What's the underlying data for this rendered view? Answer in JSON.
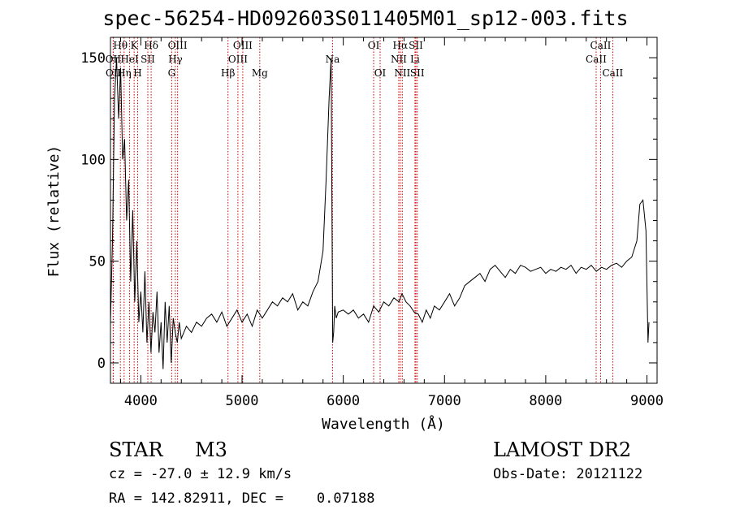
{
  "chart_data": {
    "type": "line",
    "title": "spec-56254-HD092603S011405M01_sp12-003.fits",
    "xlabel": "Wavelength (Å)",
    "ylabel": "Flux (relative)",
    "xlim": [
      3700,
      9100
    ],
    "ylim": [
      -10,
      160
    ],
    "x_ticks": [
      4000,
      5000,
      6000,
      7000,
      8000,
      9000
    ],
    "y_ticks": [
      0,
      50,
      100,
      150
    ],
    "grid": false,
    "series": [
      {
        "x": [
          3700,
          3720,
          3740,
          3760,
          3780,
          3800,
          3820,
          3840,
          3860,
          3880,
          3900,
          3920,
          3940,
          3960,
          3980,
          4000,
          4020,
          4040,
          4060,
          4080,
          4100,
          4120,
          4140,
          4160,
          4180,
          4200,
          4220,
          4240,
          4260,
          4280,
          4300,
          4320,
          4340,
          4360,
          4380,
          4400,
          4450,
          4500,
          4550,
          4600,
          4650,
          4700,
          4750,
          4800,
          4850,
          4900,
          4950,
          5000,
          5050,
          5100,
          5150,
          5200,
          5250,
          5300,
          5350,
          5400,
          5450,
          5500,
          5550,
          5600,
          5650,
          5700,
          5750,
          5800,
          5830,
          5860,
          5880,
          5895,
          5905,
          5915,
          5930,
          5950,
          6000,
          6050,
          6100,
          6150,
          6200,
          6250,
          6300,
          6350,
          6400,
          6450,
          6500,
          6550,
          6580,
          6620,
          6660,
          6700,
          6740,
          6780,
          6820,
          6860,
          6900,
          6950,
          7000,
          7050,
          7100,
          7150,
          7200,
          7250,
          7300,
          7350,
          7400,
          7450,
          7500,
          7550,
          7600,
          7650,
          7700,
          7750,
          7800,
          7850,
          7900,
          7950,
          8000,
          8050,
          8100,
          8150,
          8200,
          8250,
          8300,
          8350,
          8400,
          8450,
          8500,
          8550,
          8600,
          8650,
          8700,
          8750,
          8800,
          8850,
          8900,
          8930,
          8960,
          8990,
          9010,
          9020
        ],
        "y": [
          20,
          60,
          130,
          150,
          120,
          145,
          100,
          110,
          70,
          90,
          40,
          75,
          30,
          60,
          20,
          35,
          15,
          45,
          10,
          30,
          5,
          25,
          15,
          35,
          5,
          20,
          -3,
          30,
          10,
          28,
          0,
          22,
          15,
          10,
          20,
          12,
          18,
          15,
          20,
          18,
          22,
          24,
          20,
          25,
          18,
          22,
          26,
          20,
          24,
          18,
          26,
          22,
          26,
          30,
          28,
          32,
          30,
          34,
          26,
          30,
          28,
          35,
          40,
          55,
          90,
          130,
          150,
          10,
          15,
          28,
          22,
          25,
          26,
          24,
          26,
          22,
          24,
          20,
          28,
          25,
          30,
          28,
          32,
          30,
          34,
          30,
          28,
          25,
          24,
          20,
          26,
          22,
          28,
          26,
          30,
          34,
          28,
          32,
          38,
          40,
          42,
          44,
          40,
          46,
          48,
          45,
          42,
          46,
          44,
          48,
          47,
          45,
          46,
          47,
          44,
          46,
          45,
          47,
          46,
          48,
          44,
          47,
          46,
          48,
          45,
          47,
          46,
          48,
          49,
          47,
          50,
          52,
          60,
          78,
          80,
          65,
          10,
          20
        ]
      }
    ],
    "line_markers": [
      {
        "label": "OII",
        "x": 3727,
        "row": 2
      },
      {
        "label": "OII",
        "x": 3729,
        "row": 3
      },
      {
        "label": "Hθ",
        "x": 3798,
        "row": 1
      },
      {
        "label": "Hη",
        "x": 3835,
        "row": 3
      },
      {
        "label": "HeI",
        "x": 3889,
        "row": 2
      },
      {
        "label": "K",
        "x": 3934,
        "row": 1
      },
      {
        "label": "H",
        "x": 3969,
        "row": 3
      },
      {
        "label": "SII",
        "x": 4069,
        "row": 2
      },
      {
        "label": "Hδ",
        "x": 4102,
        "row": 1
      },
      {
        "label": "Hγ",
        "x": 4341,
        "row": 2
      },
      {
        "label": "G",
        "x": 4305,
        "row": 3
      },
      {
        "label": "OIII",
        "x": 4363,
        "row": 1
      },
      {
        "label": "Hβ",
        "x": 4861,
        "row": 3
      },
      {
        "label": "OIII",
        "x": 4959,
        "row": 2
      },
      {
        "label": "OIII",
        "x": 5007,
        "row": 1
      },
      {
        "label": "Mg",
        "x": 5175,
        "row": 3
      },
      {
        "label": "Na",
        "x": 5894,
        "row": 2
      },
      {
        "label": "OI",
        "x": 6300,
        "row": 1
      },
      {
        "label": "OI",
        "x": 6364,
        "row": 3
      },
      {
        "label": "NII",
        "x": 6548,
        "row": 2
      },
      {
        "label": "Hα",
        "x": 6563,
        "row": 1
      },
      {
        "label": "NII",
        "x": 6583,
        "row": 3
      },
      {
        "label": "Li",
        "x": 6708,
        "row": 2
      },
      {
        "label": "SII",
        "x": 6717,
        "row": 1
      },
      {
        "label": "SII",
        "x": 6731,
        "row": 3
      },
      {
        "label": "CaII",
        "x": 8498,
        "row": 2
      },
      {
        "label": "CaII",
        "x": 8542,
        "row": 1
      },
      {
        "label": "CaII",
        "x": 8662,
        "row": 3
      }
    ],
    "marker_color": "#cc0000"
  },
  "info": {
    "class": "STAR",
    "subclass": "M3",
    "survey": "LAMOST DR2",
    "cz": "cz = -27.0 ± 12.9 km/s",
    "obs_date": "Obs-Date: 20121122",
    "coords": "RA = 142.82911, DEC =    0.07188"
  }
}
